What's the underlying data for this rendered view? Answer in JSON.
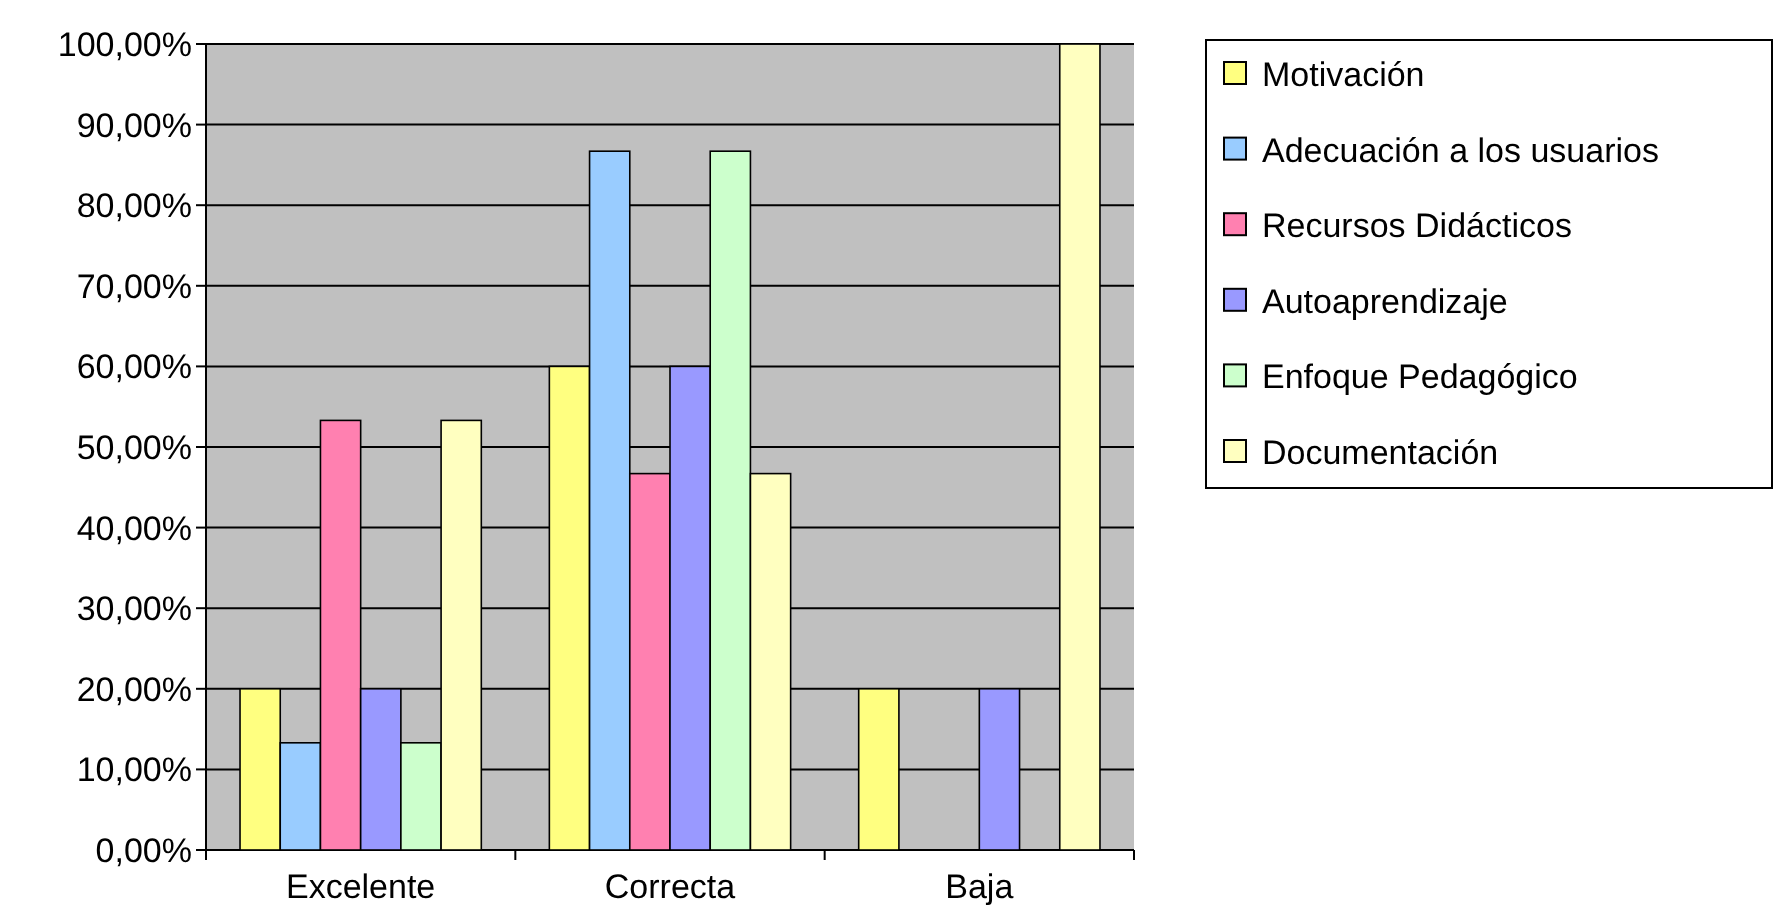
{
  "chart_data": {
    "type": "bar",
    "categories": [
      "Excelente",
      "Correcta",
      "Baja"
    ],
    "series": [
      {
        "name": "Motivación",
        "color": "#ffff80",
        "values": [
          20,
          60,
          20
        ]
      },
      {
        "name": "Adecuación a los usuarios",
        "color": "#99ccff",
        "values": [
          13.3,
          86.7,
          0
        ]
      },
      {
        "name": "Recursos Didácticos",
        "color": "#ff80b0",
        "values": [
          53.3,
          46.7,
          0
        ]
      },
      {
        "name": "Autoaprendizaje",
        "color": "#9999ff",
        "values": [
          20,
          60,
          20
        ]
      },
      {
        "name": "Enfoque Pedagógico",
        "color": "#ccffcc",
        "values": [
          13.3,
          86.7,
          0
        ]
      },
      {
        "name": "Documentación",
        "color": "#ffffc0",
        "values": [
          53.3,
          46.7,
          100
        ]
      }
    ],
    "ylim": [
      0,
      100
    ],
    "yticks": [
      {
        "value": 0,
        "label": "0,00%"
      },
      {
        "value": 10,
        "label": "10,00%"
      },
      {
        "value": 20,
        "label": "20,00%"
      },
      {
        "value": 30,
        "label": "30,00%"
      },
      {
        "value": 40,
        "label": "40,00%"
      },
      {
        "value": 50,
        "label": "50,00%"
      },
      {
        "value": 60,
        "label": "60,00%"
      },
      {
        "value": 70,
        "label": "70,00%"
      },
      {
        "value": 80,
        "label": "80,00%"
      },
      {
        "value": 90,
        "label": "90,00%"
      },
      {
        "value": 100,
        "label": "100,00%"
      }
    ],
    "grid": "y",
    "legend": "right"
  }
}
